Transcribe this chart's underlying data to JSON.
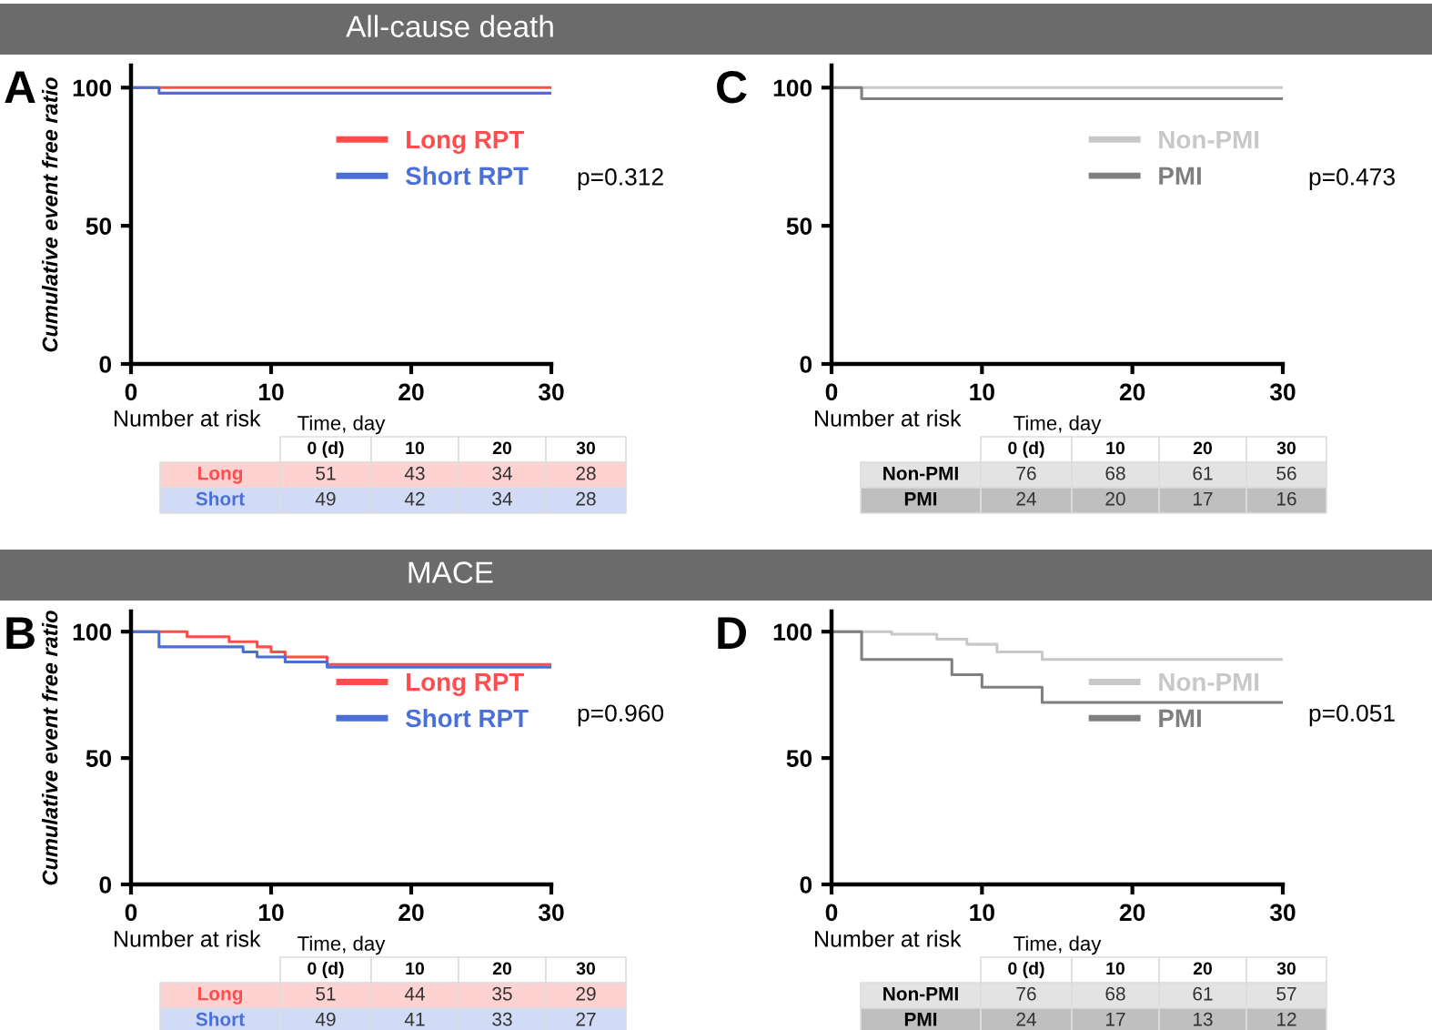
{
  "chart_data": [
    {
      "type": "step",
      "title": "A",
      "subtitle": "All-cause death",
      "ylabel": "Cumulative event free ratio",
      "xlabel": "Time, day",
      "xlim": [
        0,
        30
      ],
      "xticks": [
        0,
        10,
        20,
        30
      ],
      "ylim": [
        0,
        108
      ],
      "yticks": [
        0,
        50,
        100
      ],
      "legend": "top right",
      "grid": false,
      "series": [
        {
          "name": "Long RPT",
          "color": "#ff4d4d",
          "x": [
            0,
            30
          ],
          "values": [
            100,
            100
          ]
        },
        {
          "name": "Short RPT",
          "color": "#4a6fd6",
          "x": [
            0,
            2,
            30
          ],
          "values": [
            100,
            98,
            98
          ]
        }
      ],
      "annotations": [
        "p=0.312",
        "Number at risk",
        "0 (d)",
        "10",
        "20",
        "30",
        "Long",
        "51",
        "43",
        "34",
        "28",
        "Short",
        "49",
        "42",
        "34",
        "28"
      ]
    },
    {
      "type": "step",
      "title": "C",
      "xlabel": "Time, day",
      "xlim": [
        0,
        30
      ],
      "xticks": [
        0,
        10,
        20,
        30
      ],
      "ylim": [
        0,
        108
      ],
      "yticks": [
        0,
        50,
        100
      ],
      "legend": "top right",
      "grid": false,
      "series": [
        {
          "name": "Non-PMI",
          "color": "#c8c8c8",
          "x": [
            0,
            30
          ],
          "values": [
            100,
            100
          ]
        },
        {
          "name": "PMI",
          "color": "#7f7f7f",
          "x": [
            0,
            2,
            30
          ],
          "values": [
            100,
            96,
            96
          ]
        }
      ],
      "annotations": [
        "p=0.473",
        "Number at risk",
        "0 (d)",
        "10",
        "20",
        "30",
        "Non-PMI",
        "76",
        "68",
        "61",
        "56",
        "PMI",
        "24",
        "20",
        "17",
        "16"
      ]
    },
    {
      "type": "step",
      "title": "B",
      "subtitle": "MACE",
      "ylabel": "Cumulative event free ratio",
      "xlabel": "Time, day",
      "xlim": [
        0,
        30
      ],
      "xticks": [
        0,
        10,
        20,
        30
      ],
      "ylim": [
        0,
        108
      ],
      "yticks": [
        0,
        50,
        100
      ],
      "legend": "top right",
      "grid": false,
      "series": [
        {
          "name": "Long RPT",
          "color": "#ff4d4d",
          "x": [
            0,
            4,
            7,
            9,
            10,
            11,
            14,
            30
          ],
          "values": [
            100,
            98,
            96,
            94,
            92,
            90,
            87,
            87
          ]
        },
        {
          "name": "Short RPT",
          "color": "#4a6fd6",
          "x": [
            0,
            2,
            8,
            9,
            11,
            14,
            30
          ],
          "values": [
            100,
            94,
            92,
            90,
            88,
            86,
            86
          ]
        }
      ],
      "annotations": [
        "p=0.960",
        "Number at risk",
        "0 (d)",
        "10",
        "20",
        "30",
        "Long",
        "51",
        "44",
        "35",
        "29",
        "Short",
        "49",
        "41",
        "33",
        "27"
      ]
    },
    {
      "type": "step",
      "title": "D",
      "xlabel": "Time, day",
      "xlim": [
        0,
        30
      ],
      "xticks": [
        0,
        10,
        20,
        30
      ],
      "ylim": [
        0,
        108
      ],
      "yticks": [
        0,
        50,
        100
      ],
      "legend": "top right",
      "grid": false,
      "series": [
        {
          "name": "Non-PMI",
          "color": "#c8c8c8",
          "x": [
            0,
            4,
            7,
            9,
            11,
            14,
            30
          ],
          "values": [
            100,
            99,
            97,
            95,
            92,
            89,
            89
          ]
        },
        {
          "name": "PMI",
          "color": "#7f7f7f",
          "x": [
            0,
            2,
            8,
            10,
            14,
            30
          ],
          "values": [
            100,
            89,
            83,
            78,
            72,
            72
          ]
        }
      ],
      "annotations": [
        "p=0.051",
        "Number at risk",
        "0 (d)",
        "10",
        "20",
        "30",
        "Non-PMI",
        "76",
        "68",
        "61",
        "57",
        "PMI",
        "24",
        "17",
        "13",
        "12"
      ]
    }
  ]
}
